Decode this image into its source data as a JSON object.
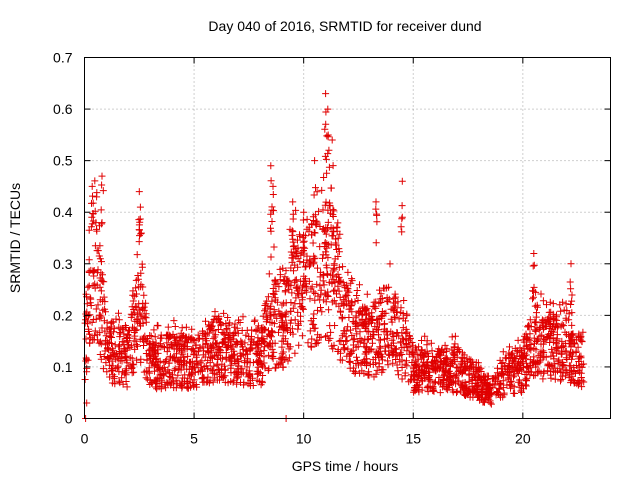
{
  "chart_data": {
    "type": "scatter",
    "title": "Day 040 of 2016, SRMTID for receiver dund",
    "xlabel": "GPS time / hours",
    "ylabel": "SRMTID / TECUs",
    "xlim": [
      0,
      24
    ],
    "ylim": [
      0,
      0.7
    ],
    "xticks": [
      "0",
      "5",
      "10",
      "15",
      "20"
    ],
    "yticks": [
      "0",
      "0.1",
      "0.2",
      "0.3",
      "0.4",
      "0.5",
      "0.6",
      "0.7"
    ],
    "xtick_values": [
      0,
      5,
      10,
      15,
      20
    ],
    "ytick_values": [
      0,
      0.1,
      0.2,
      0.3,
      0.4,
      0.5,
      0.6,
      0.7
    ],
    "grid": true,
    "marker": "+",
    "color": "#e00000",
    "series": [
      {
        "name": "SRMTID",
        "generator": {
          "x_start": 0.02,
          "x_end": 22.8,
          "count": 2600,
          "seed": 40,
          "envelope": [
            [
              0.0,
              0.12
            ],
            [
              0.3,
              0.3
            ],
            [
              0.6,
              0.28
            ],
            [
              1.0,
              0.14
            ],
            [
              2.0,
              0.12
            ],
            [
              2.5,
              0.22
            ],
            [
              3.0,
              0.11
            ],
            [
              4.0,
              0.12
            ],
            [
              5.0,
              0.11
            ],
            [
              6.0,
              0.14
            ],
            [
              7.0,
              0.13
            ],
            [
              8.0,
              0.12
            ],
            [
              8.5,
              0.2
            ],
            [
              9.0,
              0.18
            ],
            [
              9.5,
              0.25
            ],
            [
              10.0,
              0.26
            ],
            [
              10.5,
              0.28
            ],
            [
              11.0,
              0.3
            ],
            [
              11.5,
              0.25
            ],
            [
              12.0,
              0.18
            ],
            [
              13.0,
              0.15
            ],
            [
              14.0,
              0.2
            ],
            [
              14.5,
              0.15
            ],
            [
              15.0,
              0.1
            ],
            [
              16.0,
              0.1
            ],
            [
              17.0,
              0.1
            ],
            [
              18.0,
              0.07
            ],
            [
              18.5,
              0.05
            ],
            [
              19.0,
              0.08
            ],
            [
              20.0,
              0.1
            ],
            [
              20.5,
              0.16
            ],
            [
              21.0,
              0.15
            ],
            [
              22.0,
              0.14
            ],
            [
              22.8,
              0.11
            ]
          ],
          "peaks": [
            [
              0.35,
              0.45
            ],
            [
              0.8,
              0.47
            ],
            [
              2.5,
              0.44
            ],
            [
              2.55,
              0.41
            ],
            [
              8.5,
              0.49
            ],
            [
              8.6,
              0.45
            ],
            [
              9.5,
              0.42
            ],
            [
              10.0,
              0.4
            ],
            [
              10.5,
              0.5
            ],
            [
              11.0,
              0.63
            ],
            [
              11.1,
              0.6
            ],
            [
              11.3,
              0.54
            ],
            [
              11.15,
              0.52
            ],
            [
              13.3,
              0.42
            ],
            [
              14.5,
              0.46
            ],
            [
              20.5,
              0.32
            ],
            [
              22.2,
              0.3
            ]
          ],
          "outliers": [
            [
              0.05,
              0.0
            ],
            [
              9.2,
              0.0
            ],
            [
              0.1,
              0.03
            ]
          ]
        }
      }
    ]
  }
}
